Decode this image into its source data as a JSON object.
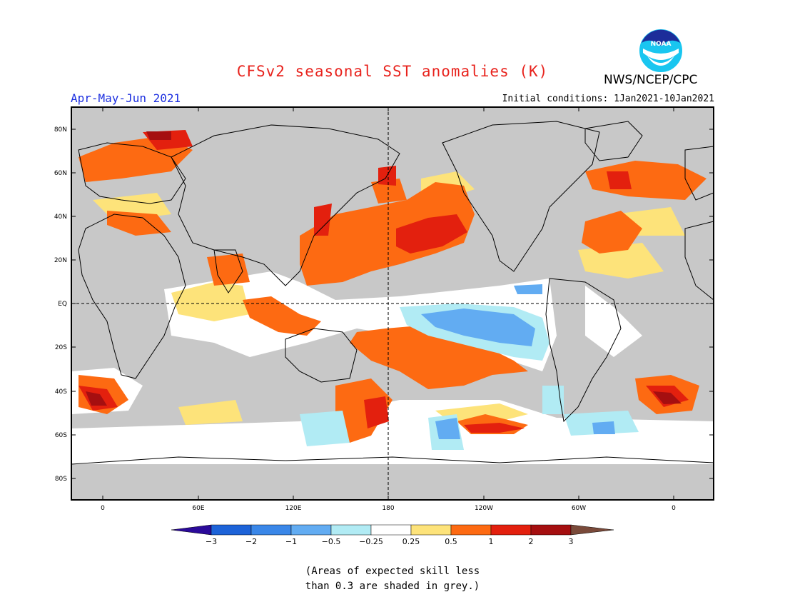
{
  "header": {
    "title": "CFSv2 seasonal SST anomalies (K)",
    "org": "NWS/NCEP/CPC",
    "season": "Apr-May-Jun 2021",
    "initial_conditions": "Initial conditions: 1Jan2021-10Jan2021"
  },
  "logo": {
    "text": "NOAA"
  },
  "map": {
    "lat_labels": [
      "80N",
      "60N",
      "40N",
      "20N",
      "EQ",
      "20S",
      "40S",
      "60S",
      "80S"
    ],
    "lon_labels": [
      "0",
      "60E",
      "120E",
      "180",
      "120W",
      "60W",
      "0"
    ],
    "colors": {
      "land_mask": "#c8c8c8",
      "ocean_neutral": "#ffffff",
      "coast": "#000000"
    }
  },
  "colorbar": {
    "labels": [
      "-3",
      "-2",
      "-1",
      "-0.5",
      "-0.25",
      "0.25",
      "0.5",
      "1",
      "2",
      "3"
    ],
    "colors": [
      "#2b0a9a",
      "#1d63d8",
      "#3a87e8",
      "#62acf2",
      "#b1ebf4",
      "#ffffff",
      "#fde37a",
      "#fd6a12",
      "#e3200e",
      "#a50f10",
      "#7a4a3a"
    ]
  },
  "footnote": {
    "line1": "(Areas of expected skill less",
    "line2": "than 0.3 are shaded in grey.)"
  }
}
